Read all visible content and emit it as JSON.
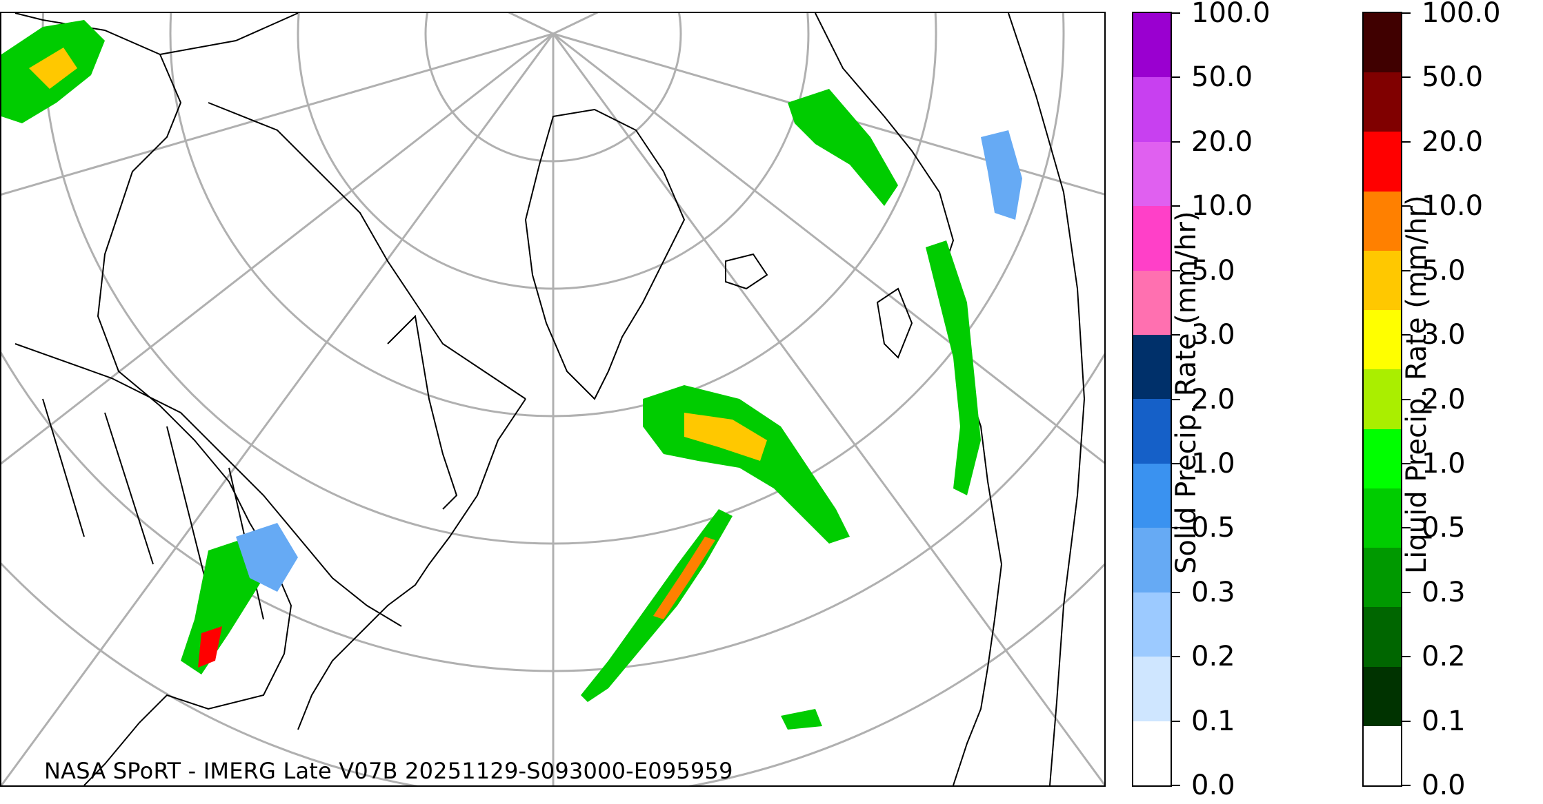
{
  "credit": "NASA SPoRT - IMERG Late V07B 20251129-S093000-E095959",
  "solid_colorbar": {
    "title": "Solid Precip. Rate (mm/hr)",
    "ticks": [
      "0.0",
      "0.1",
      "0.2",
      "0.3",
      "0.5",
      "1.0",
      "2.0",
      "3.0",
      "5.0",
      "10.0",
      "20.0",
      "50.0",
      "100.0"
    ],
    "colors": [
      "#ffffff",
      "#cfe6ff",
      "#9ccaff",
      "#66aaf4",
      "#3a92f0",
      "#1560c8",
      "#00306a",
      "#ff70b0",
      "#ff40c8",
      "#e060f0",
      "#c840f0",
      "#9a00d0"
    ]
  },
  "liquid_colorbar": {
    "title": "Liquid Precip. Rate (mm/hr)",
    "ticks": [
      "0.0",
      "0.1",
      "0.2",
      "0.3",
      "0.5",
      "1.0",
      "2.0",
      "3.0",
      "5.0",
      "10.0",
      "20.0",
      "50.0",
      "100.0"
    ],
    "colors": [
      "#ffffff",
      "#003300",
      "#006600",
      "#009900",
      "#00cc00",
      "#00ff00",
      "#aaee00",
      "#ffff00",
      "#ffc800",
      "#ff8000",
      "#ff0000",
      "#800000",
      "#400000"
    ]
  }
}
